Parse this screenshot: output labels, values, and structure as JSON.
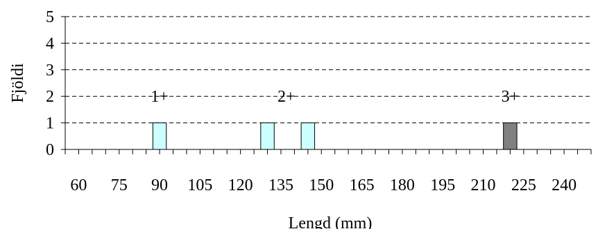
{
  "chart_data": {
    "type": "bar",
    "title": "",
    "xlabel": "Lengd (mm)",
    "ylabel": "Fjöldi",
    "ylim": [
      0,
      5
    ],
    "xlim": [
      55,
      250
    ],
    "grid": "horizontal-dashed",
    "x_ticks": [
      60,
      75,
      90,
      105,
      120,
      135,
      150,
      165,
      180,
      195,
      210,
      225,
      240
    ],
    "y_ticks": [
      0,
      1,
      2,
      3,
      4,
      5
    ],
    "bars": [
      {
        "x": 90,
        "value": 1,
        "color": "#ccffff"
      },
      {
        "x": 130,
        "value": 1,
        "color": "#ccffff"
      },
      {
        "x": 145,
        "value": 1,
        "color": "#ccffff"
      },
      {
        "x": 220,
        "value": 1,
        "color": "#808080"
      }
    ],
    "annotations": [
      {
        "text": "1+",
        "x": 90,
        "y": 2
      },
      {
        "text": "2+",
        "x": 137,
        "y": 2
      },
      {
        "text": "3+",
        "x": 220,
        "y": 2
      }
    ]
  }
}
